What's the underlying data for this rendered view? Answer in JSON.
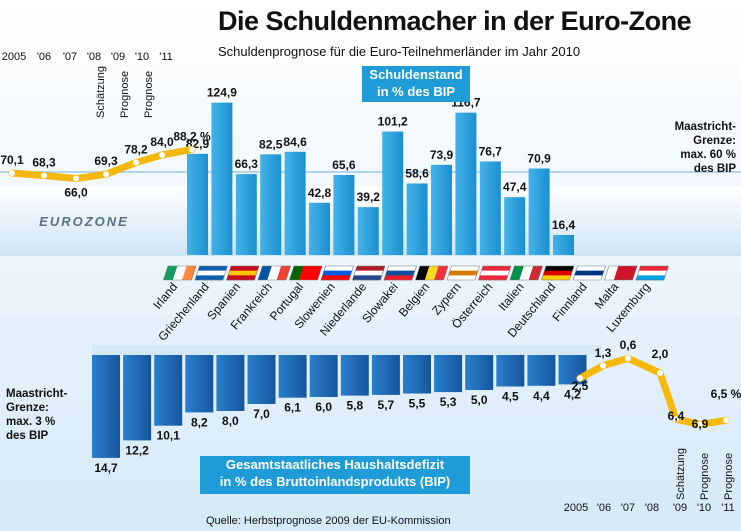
{
  "header": {
    "title": "Die Schuldenmacher in der Euro-Zone",
    "subtitle": "Schuldenprognose für die Euro-Teilnehmerländer im Jahr 2010"
  },
  "labels": {
    "debt_box_line1": "Schuldenstand",
    "debt_box_line2": "in % des BIP",
    "deficit_box_line1": "Gesamtstaatliches Haushaltsdefizit",
    "deficit_box_line2": "in % des Bruttoinlandsprodukts (BIP)",
    "eurozone": "EUROZONE",
    "maastricht_debt": [
      "Maastricht-",
      "Grenze:",
      "max. 60 %",
      "des BIP"
    ],
    "maastricht_deficit": [
      "Maastricht-",
      "Grenze:",
      "max. 3 %",
      "des BIP"
    ],
    "source": "Quelle: Herbstprognose 2009 der EU-Kommission"
  },
  "colors": {
    "debt_bar": "#1f9bd8",
    "deficit_bar": "#1866b4",
    "trend_line": "#f5b80b",
    "accent_box": "#1f9bd8"
  },
  "chart_data": [
    {
      "type": "bar",
      "categories": [
        "Irland",
        "Griechenland",
        "Spanien",
        "Frankreich",
        "Portugal",
        "Slowenien",
        "Niederlande",
        "Slowakei",
        "Belgien",
        "Zypern",
        "Österreich",
        "Italien",
        "Deutschland",
        "Finnland",
        "Malta",
        "Luxemburg"
      ],
      "series": [
        {
          "values": [
            82.9,
            124.9,
            66.3,
            82.5,
            84.6,
            42.8,
            65.6,
            39.2,
            101.2,
            58.6,
            73.9,
            116.7,
            76.7,
            47.4,
            70.9,
            16.4
          ]
        }
      ],
      "title": "Schuldenstand in % des BIP",
      "value_labels": [
        "82,9",
        "124,9",
        "66,3",
        "82,5",
        "84,6",
        "42,8",
        "65,6",
        "39,2",
        "101,2",
        "58,6",
        "73,9",
        "116,7",
        "76,7",
        "47,4",
        "70,9",
        "16,4"
      ]
    },
    {
      "type": "line",
      "title": "EUROZONE",
      "x": [
        "2005",
        "'06",
        "'07",
        "'08",
        "'09",
        "'10",
        "'11"
      ],
      "x_notes": [
        "",
        "",
        "",
        "",
        "Schätzung",
        "Prognose",
        "Prognose"
      ],
      "values": [
        70.1,
        68.3,
        66.0,
        69.3,
        78.2,
        84.0,
        88.2
      ],
      "value_labels": [
        "70,1",
        "68,3",
        "66,0",
        "69,3",
        "78,2",
        "84,0",
        "88,2 %"
      ]
    },
    {
      "type": "bar",
      "categories": [
        "Irland",
        "Griechenland",
        "Spanien",
        "Frankreich",
        "Portugal",
        "Slowenien",
        "Niederlande",
        "Slowakei",
        "Belgien",
        "Zypern",
        "Österreich",
        "Italien",
        "Deutschland",
        "Finnland",
        "Malta",
        "Luxemburg"
      ],
      "series": [
        {
          "values": [
            14.7,
            12.2,
            10.1,
            8.2,
            8.0,
            7.0,
            6.1,
            6.0,
            5.8,
            5.7,
            5.5,
            5.3,
            5.0,
            4.5,
            4.4,
            4.2
          ]
        }
      ],
      "title": "Gesamtstaatliches Haushaltsdefizit in % des Bruttoinlandsprodukts (BIP)",
      "value_labels": [
        "14,7",
        "12,2",
        "10,1",
        "8,2",
        "8,0",
        "7,0",
        "6,1",
        "6,0",
        "5,8",
        "5,7",
        "5,5",
        "5,3",
        "5,0",
        "4,5",
        "4,4",
        "4,2"
      ]
    },
    {
      "type": "line",
      "x": [
        "2005",
        "'06",
        "'07",
        "'08",
        "'09",
        "'10",
        "'11"
      ],
      "x_notes": [
        "",
        "",
        "",
        "",
        "Schätzung",
        "Prognose",
        "Prognose"
      ],
      "values": [
        -2.5,
        -1.3,
        -0.6,
        -2.0,
        -6.4,
        -6.9,
        -6.5
      ],
      "value_labels": [
        "2,5",
        "1,3",
        "0,6",
        "2,0",
        "6,4",
        "6,9",
        "6,5 %"
      ]
    }
  ]
}
